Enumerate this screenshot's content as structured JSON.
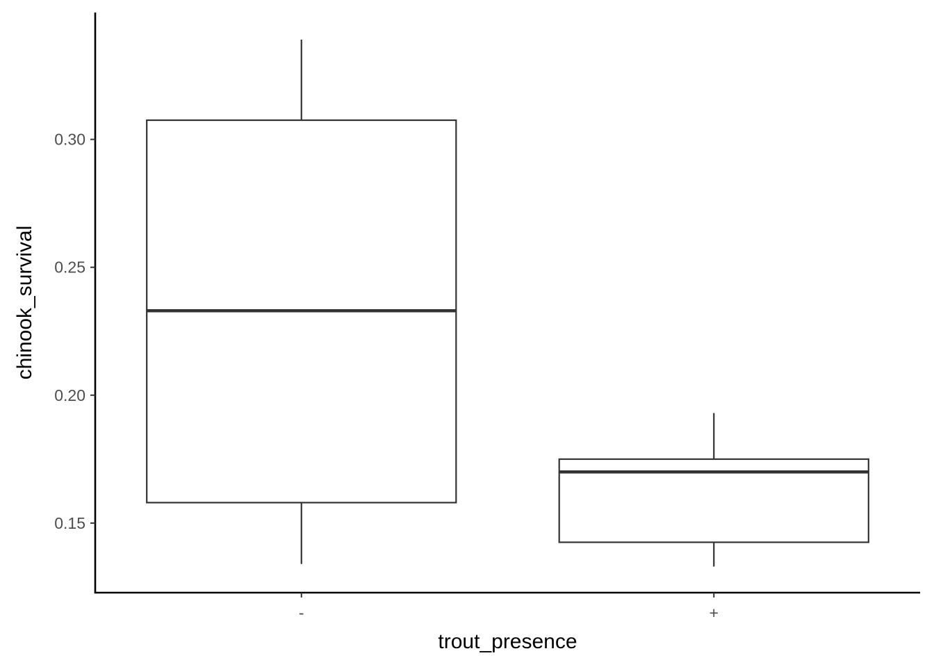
{
  "chart_data": {
    "type": "box",
    "title": "",
    "xlabel": "trout_presence",
    "ylabel": "chinook_survival",
    "categories": [
      "-",
      "+"
    ],
    "boxes": [
      {
        "category": "-",
        "whisker_low": 0.134,
        "q1": 0.158,
        "median": 0.233,
        "q3": 0.3075,
        "whisker_high": 0.339
      },
      {
        "category": "+",
        "whisker_low": 0.133,
        "q1": 0.1425,
        "median": 0.17,
        "q3": 0.175,
        "whisker_high": 0.193
      }
    ],
    "yticks": [
      0.15,
      0.2,
      0.25,
      0.3
    ],
    "ytick_labels": [
      "0.15",
      "0.20",
      "0.25",
      "0.30"
    ],
    "ylim": [
      0.1228,
      0.3496
    ],
    "grid": false,
    "legend": "none"
  }
}
